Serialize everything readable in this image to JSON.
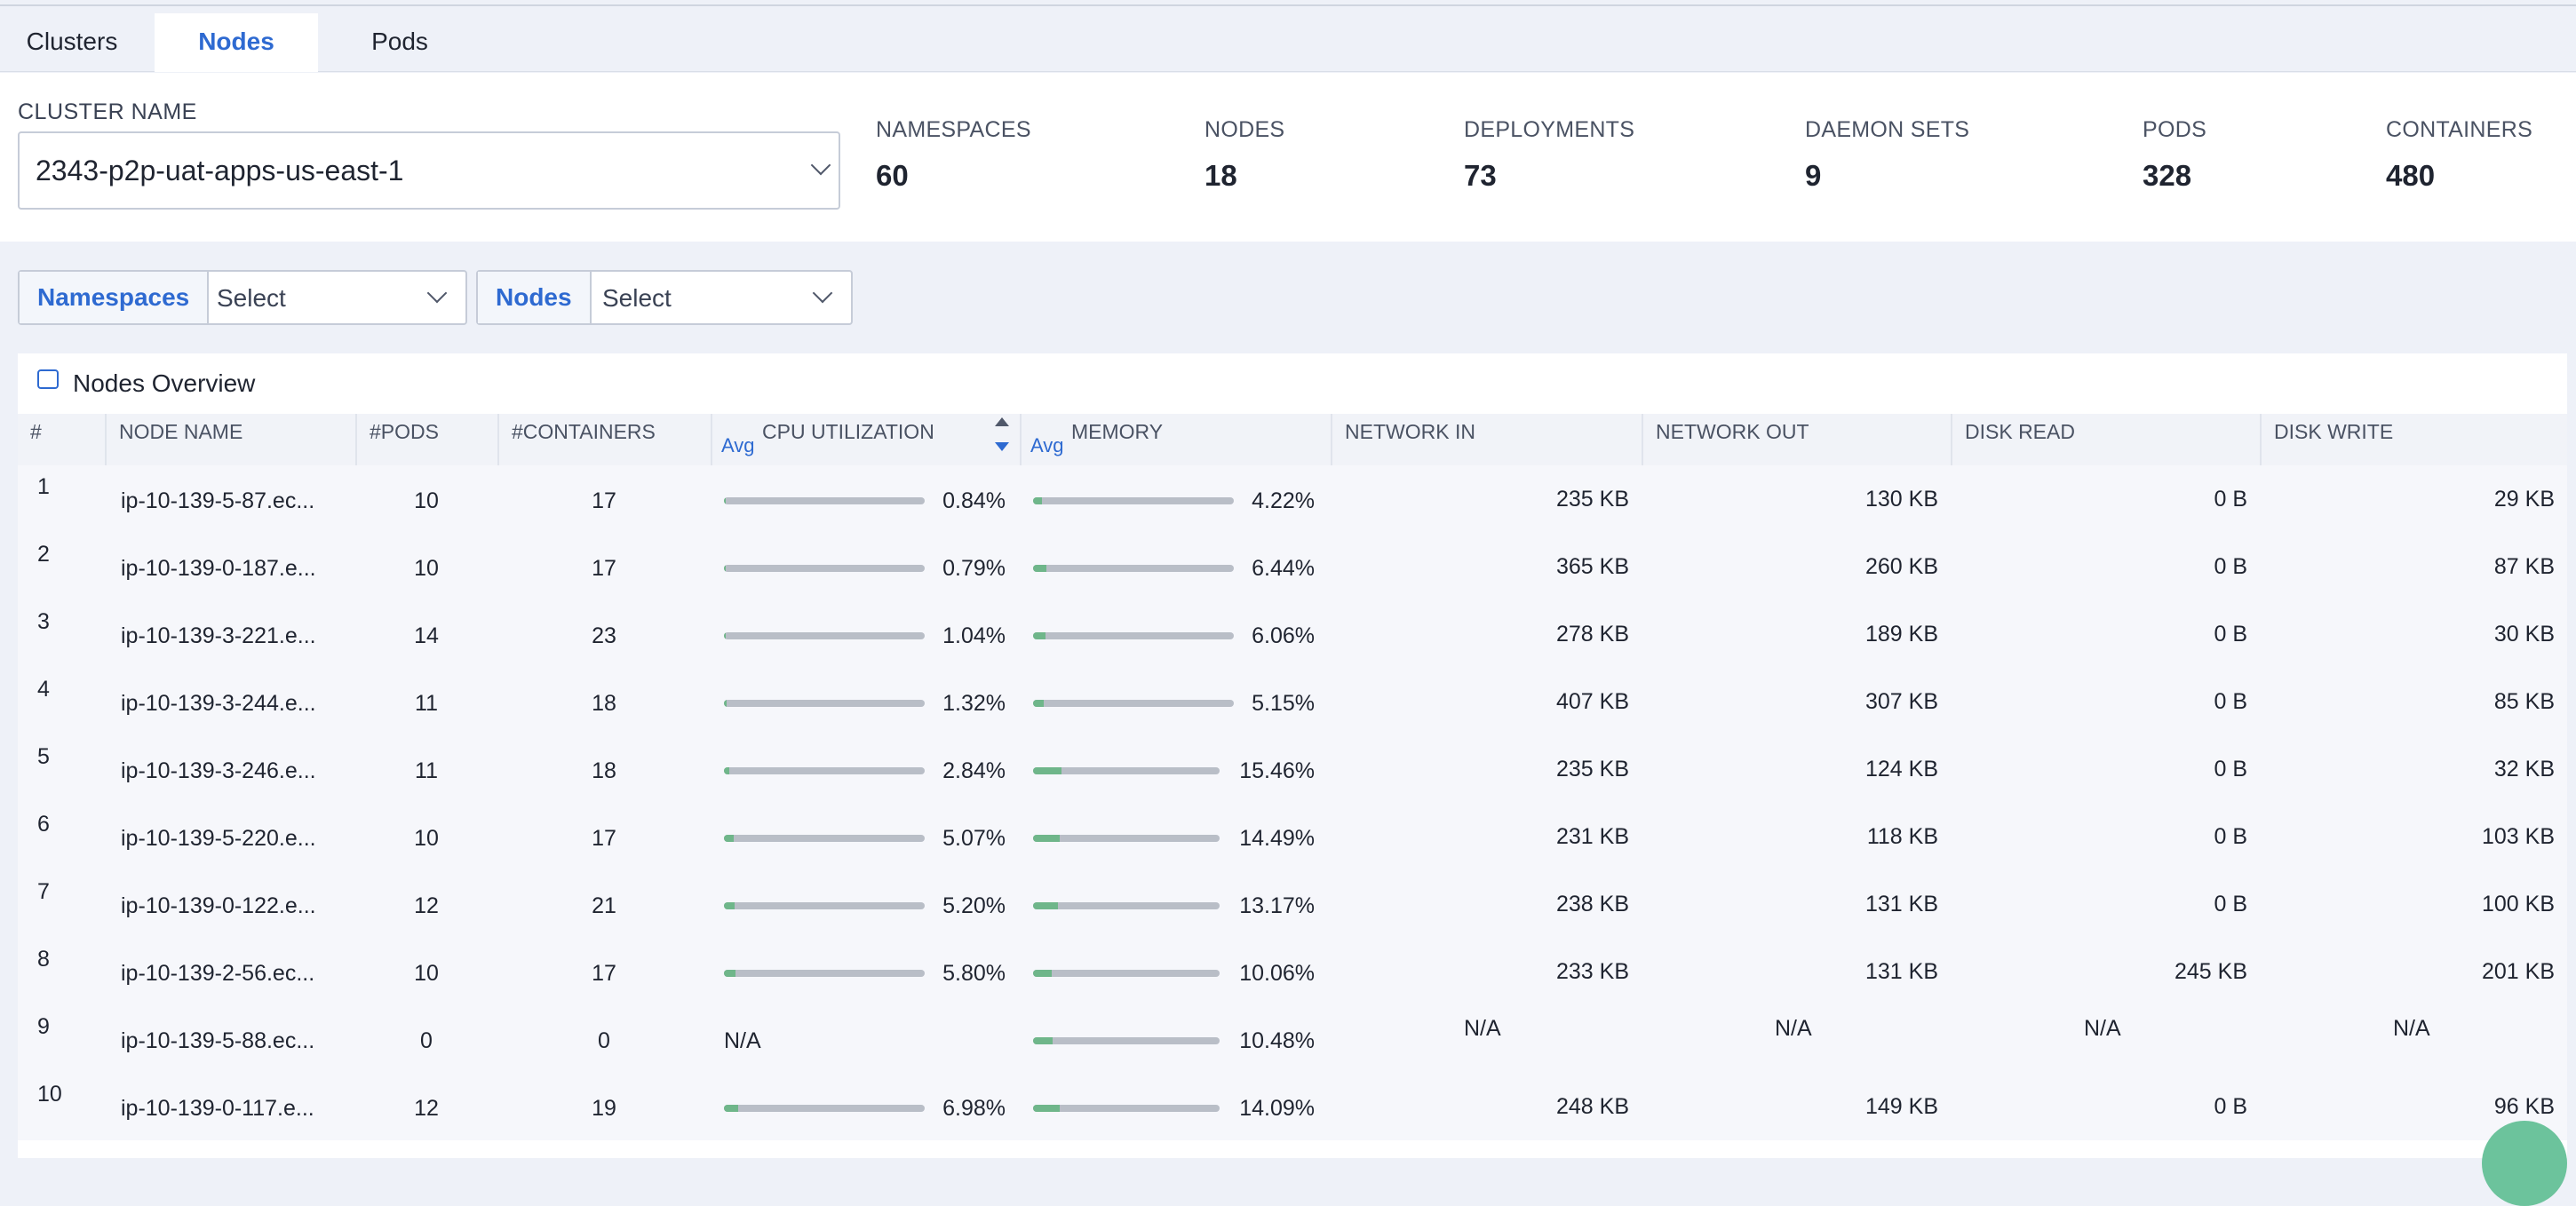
{
  "tabs": [
    {
      "label": "Clusters",
      "active": false
    },
    {
      "label": "Nodes",
      "active": true
    },
    {
      "label": "Pods",
      "active": false
    }
  ],
  "cluster": {
    "label": "CLUSTER NAME",
    "selected": "2343-p2p-uat-apps-us-east-1"
  },
  "stats": [
    {
      "label": "NAMESPACES",
      "value": "60"
    },
    {
      "label": "NODES",
      "value": "18"
    },
    {
      "label": "DEPLOYMENTS",
      "value": "73"
    },
    {
      "label": "DAEMON SETS",
      "value": "9"
    },
    {
      "label": "PODS",
      "value": "328"
    },
    {
      "label": "CONTAINERS",
      "value": "480"
    }
  ],
  "filters": {
    "namespaces": {
      "label": "Namespaces",
      "value": "Select"
    },
    "nodes": {
      "label": "Nodes",
      "value": "Select"
    }
  },
  "panel": {
    "title": "Nodes Overview",
    "icon": "chat-box-icon"
  },
  "table": {
    "headers": {
      "index": "#",
      "node_name": "NODE NAME",
      "pods": "#PODS",
      "containers": "#CONTAINERS",
      "cpu_avg": "Avg",
      "cpu": "CPU UTILIZATION",
      "mem_avg": "Avg",
      "memory": "MEMORY",
      "net_in": "NETWORK IN",
      "net_out": "NETWORK OUT",
      "disk_read": "DISK READ",
      "disk_write": "DISK WRITE"
    },
    "rows": [
      {
        "idx": "1",
        "name": "ip-10-139-5-87.ec...",
        "pods": "10",
        "containers": "17",
        "cpu": "0.84%",
        "cpu_frac": 0.0084,
        "mem": "4.22%",
        "mem_frac": 0.0422,
        "net_in": "235 KB",
        "net_out": "130 KB",
        "disk_read": "0 B",
        "disk_write": "29 KB"
      },
      {
        "idx": "2",
        "name": "ip-10-139-0-187.e...",
        "pods": "10",
        "containers": "17",
        "cpu": "0.79%",
        "cpu_frac": 0.0079,
        "mem": "6.44%",
        "mem_frac": 0.0644,
        "net_in": "365 KB",
        "net_out": "260 KB",
        "disk_read": "0 B",
        "disk_write": "87 KB"
      },
      {
        "idx": "3",
        "name": "ip-10-139-3-221.e...",
        "pods": "14",
        "containers": "23",
        "cpu": "1.04%",
        "cpu_frac": 0.0104,
        "mem": "6.06%",
        "mem_frac": 0.0606,
        "net_in": "278 KB",
        "net_out": "189 KB",
        "disk_read": "0 B",
        "disk_write": "30 KB"
      },
      {
        "idx": "4",
        "name": "ip-10-139-3-244.e...",
        "pods": "11",
        "containers": "18",
        "cpu": "1.32%",
        "cpu_frac": 0.0132,
        "mem": "5.15%",
        "mem_frac": 0.0515,
        "net_in": "407 KB",
        "net_out": "307 KB",
        "disk_read": "0 B",
        "disk_write": "85 KB"
      },
      {
        "idx": "5",
        "name": "ip-10-139-3-246.e...",
        "pods": "11",
        "containers": "18",
        "cpu": "2.84%",
        "cpu_frac": 0.0284,
        "mem": "15.46%",
        "mem_frac": 0.1546,
        "net_in": "235 KB",
        "net_out": "124 KB",
        "disk_read": "0 B",
        "disk_write": "32 KB"
      },
      {
        "idx": "6",
        "name": "ip-10-139-5-220.e...",
        "pods": "10",
        "containers": "17",
        "cpu": "5.07%",
        "cpu_frac": 0.0507,
        "mem": "14.49%",
        "mem_frac": 0.1449,
        "net_in": "231 KB",
        "net_out": "118 KB",
        "disk_read": "0 B",
        "disk_write": "103 KB"
      },
      {
        "idx": "7",
        "name": "ip-10-139-0-122.e...",
        "pods": "12",
        "containers": "21",
        "cpu": "5.20%",
        "cpu_frac": 0.052,
        "mem": "13.17%",
        "mem_frac": 0.1317,
        "net_in": "238 KB",
        "net_out": "131 KB",
        "disk_read": "0 B",
        "disk_write": "100 KB"
      },
      {
        "idx": "8",
        "name": "ip-10-139-2-56.ec...",
        "pods": "10",
        "containers": "17",
        "cpu": "5.80%",
        "cpu_frac": 0.058,
        "mem": "10.06%",
        "mem_frac": 0.1006,
        "net_in": "233 KB",
        "net_out": "131 KB",
        "disk_read": "245 KB",
        "disk_write": "201 KB"
      },
      {
        "idx": "9",
        "name": "ip-10-139-5-88.ec...",
        "pods": "0",
        "containers": "0",
        "cpu": "N/A",
        "cpu_frac": null,
        "mem": "10.48%",
        "mem_frac": 0.1048,
        "net_in": "N/A",
        "net_out": "N/A",
        "disk_read": "N/A",
        "disk_write": "N/A"
      },
      {
        "idx": "10",
        "name": "ip-10-139-0-117.e...",
        "pods": "12",
        "containers": "19",
        "cpu": "6.98%",
        "cpu_frac": 0.0698,
        "mem": "14.09%",
        "mem_frac": 0.1409,
        "net_in": "248 KB",
        "net_out": "149 KB",
        "disk_read": "0 B",
        "disk_write": "96 KB"
      }
    ]
  },
  "colors": {
    "accent": "#2e6ad1",
    "bar_track": "#b9bec7",
    "bar_fill": "#6fb68a",
    "chat_button": "#6cc39c"
  }
}
